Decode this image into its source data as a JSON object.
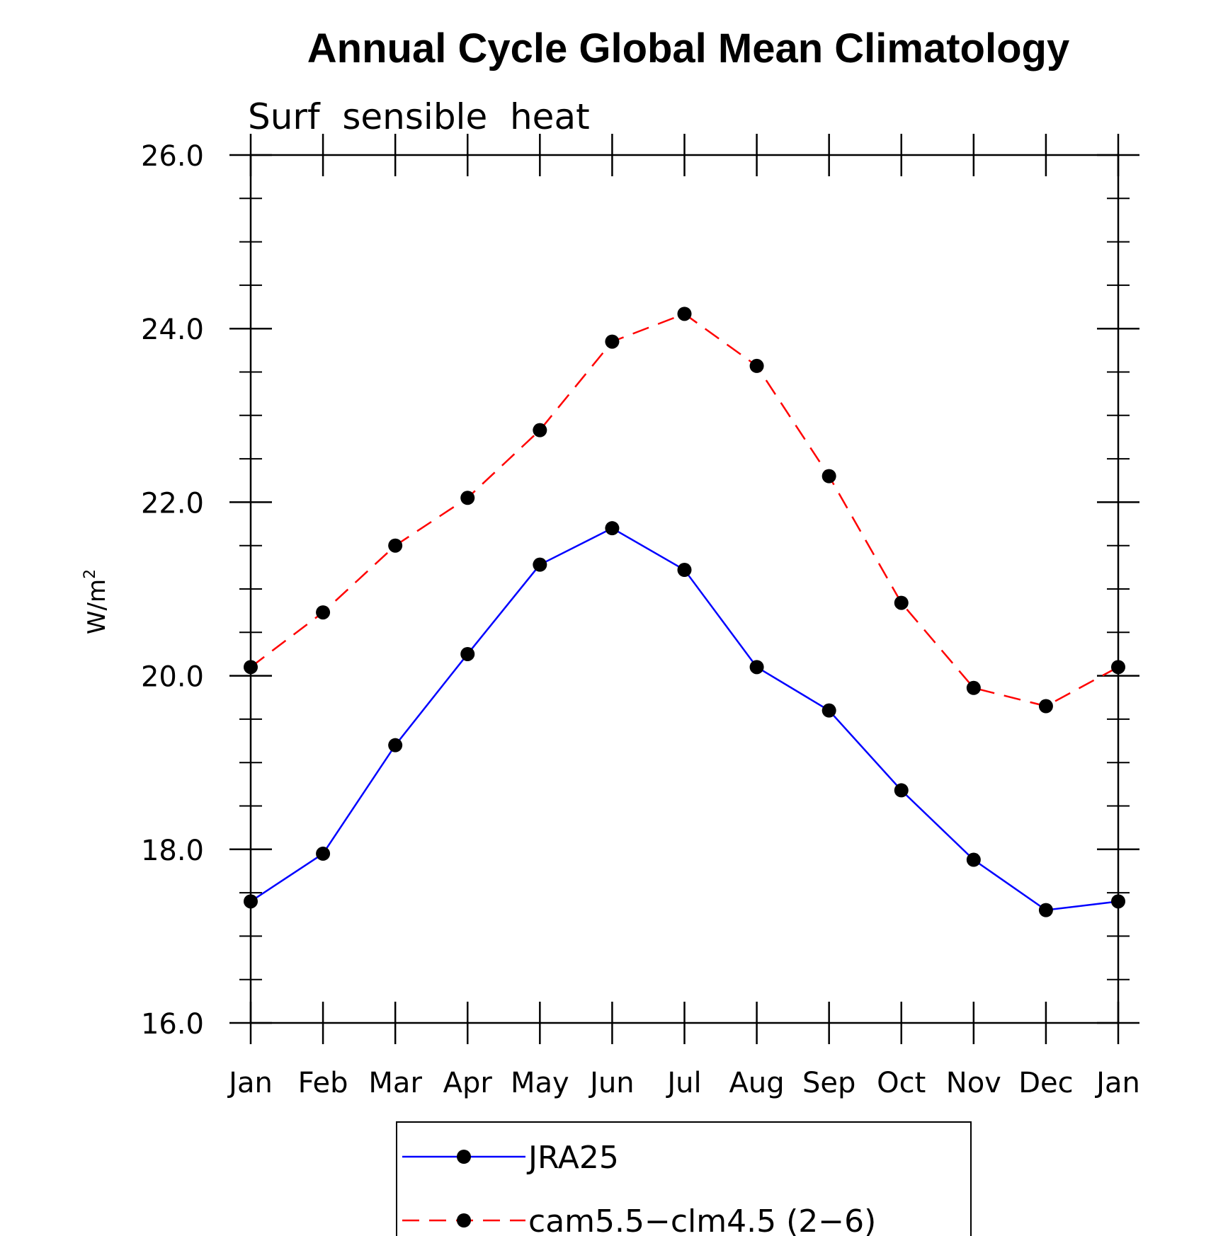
{
  "chart_data": {
    "type": "line",
    "title": "Annual Cycle Global Mean Climatology",
    "subtitle": "Surf  sensible  heat",
    "ylabel": "W/m",
    "ylabel_superscript": "2",
    "xlabel": "",
    "categories": [
      "Jan",
      "Feb",
      "Mar",
      "Apr",
      "May",
      "Jun",
      "Jul",
      "Aug",
      "Sep",
      "Oct",
      "Nov",
      "Dec",
      "Jan"
    ],
    "ylim": [
      16.0,
      26.0
    ],
    "yticks": [
      "16.0",
      "18.0",
      "20.0",
      "22.0",
      "24.0",
      "26.0"
    ],
    "ytick_values": [
      16,
      18,
      20,
      22,
      24,
      26
    ],
    "y_minor_step": 0.5,
    "grid": false,
    "legend_position": "bottom-center",
    "series": [
      {
        "name": "JRA25",
        "color": "#0000ff",
        "dash": "solid",
        "marker": "filled-circle",
        "values": [
          17.4,
          17.95,
          19.2,
          20.25,
          21.28,
          21.7,
          21.22,
          20.1,
          19.6,
          18.68,
          17.88,
          17.3,
          17.4
        ]
      },
      {
        "name": "cam5.5−clm4.5 (2−6)",
        "color": "#ff0000",
        "dash": "dashed",
        "marker": "filled-circle",
        "values": [
          20.1,
          20.73,
          21.5,
          22.05,
          22.83,
          23.85,
          24.17,
          23.57,
          22.3,
          20.84,
          19.86,
          19.65,
          20.1
        ]
      }
    ]
  }
}
